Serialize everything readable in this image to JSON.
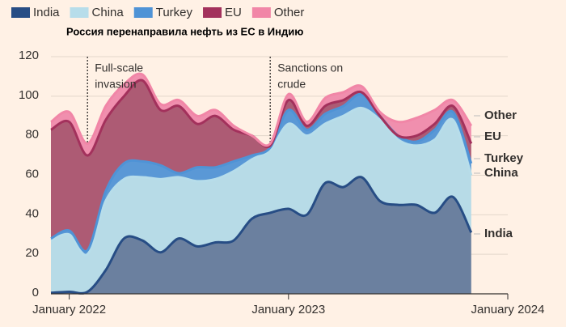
{
  "chart_data": {
    "type": "stacked_area",
    "subtitle": "Россия перенаправила нефть из ЕС в Индию",
    "x": [
      "2021-12",
      "2022-01",
      "2022-02",
      "2022-03",
      "2022-04",
      "2022-05",
      "2022-06",
      "2022-07",
      "2022-08",
      "2022-09",
      "2022-10",
      "2022-11",
      "2022-12",
      "2023-01",
      "2023-02",
      "2023-03",
      "2023-04",
      "2023-05",
      "2023-06",
      "2023-07",
      "2023-08",
      "2023-09",
      "2023-10",
      "2023-11"
    ],
    "series": [
      {
        "name": "India",
        "color": "#274d85",
        "fill": "#6b809f",
        "values": [
          0.5,
          1,
          1,
          12,
          28,
          27,
          21,
          28,
          24,
          26,
          27,
          38,
          41,
          43,
          40,
          56,
          54,
          59,
          47,
          45,
          45,
          41,
          49,
          31
        ]
      },
      {
        "name": "China",
        "color": "#b7ddea",
        "fill": "#b7dbe7",
        "values": [
          26.5,
          29,
          19,
          35,
          30,
          32,
          37,
          31,
          33,
          32,
          35,
          30,
          32,
          43,
          40,
          30,
          36,
          35,
          41,
          33,
          30,
          37,
          39,
          29
        ]
      },
      {
        "name": "Turkey",
        "color": "#4f93d6",
        "fill": "#5a98d6",
        "values": [
          1,
          2,
          2,
          5,
          8,
          8,
          7,
          2,
          7,
          6,
          5,
          2,
          1,
          7,
          3,
          5,
          5,
          7,
          2,
          2,
          2,
          5,
          4,
          6
        ]
      },
      {
        "name": "EU",
        "color": "#a3315c",
        "fill": "#ad5b74",
        "values": [
          55,
          55,
          48,
          36,
          34,
          41,
          28,
          34,
          22,
          26,
          16,
          10,
          1,
          5,
          2,
          4,
          3,
          1,
          0,
          0,
          3,
          3,
          3,
          10
        ]
      },
      {
        "name": "Other",
        "color": "#f186a7",
        "fill": "#f08fae",
        "values": [
          4,
          5,
          6,
          7,
          6,
          3,
          3,
          3,
          4,
          3,
          2,
          0,
          1,
          3,
          2,
          4,
          4,
          3,
          2,
          7,
          9,
          7,
          3,
          9
        ]
      }
    ],
    "xlim": [
      "2021-12",
      "2024-01"
    ],
    "xticks": [
      {
        "value": "2022-01",
        "label": "January 2022"
      },
      {
        "value": "2023-01",
        "label": "January 2023"
      },
      {
        "value": "2024-01",
        "label": "January 2024"
      }
    ],
    "ylim": [
      0,
      120
    ],
    "yticks": [
      0,
      20,
      40,
      60,
      80,
      100,
      120
    ],
    "grid": true,
    "annotations": [
      {
        "x": "2022-02",
        "text": [
          "Full-scale",
          "invasion"
        ]
      },
      {
        "x": "2022-12",
        "text": [
          "Sanctions on",
          "crude"
        ]
      }
    ]
  }
}
